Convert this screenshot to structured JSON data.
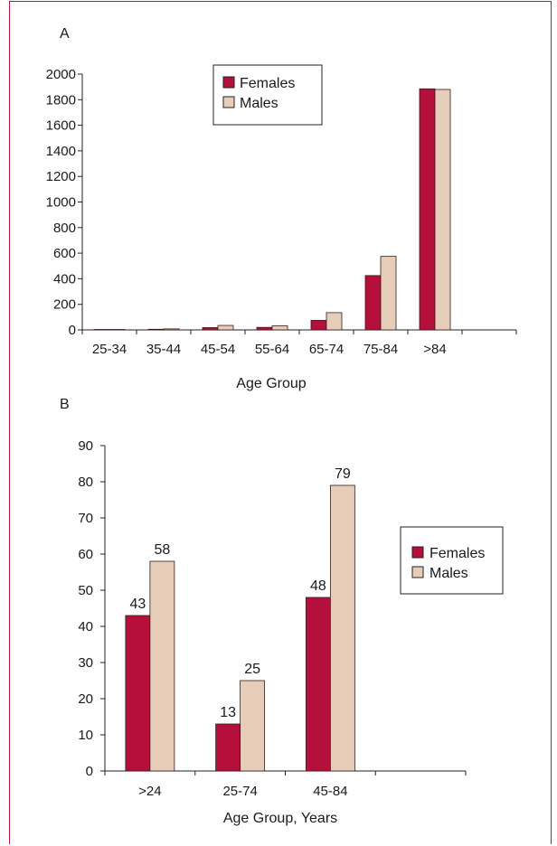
{
  "colors": {
    "females": "#b5103c",
    "males": "#e6cdb9",
    "frame": "#c4143d",
    "axis": "#222222"
  },
  "chart_data": [
    {
      "type": "bar",
      "panel_label": "A",
      "categories": [
        "25-34",
        "35-44",
        "45-54",
        "55-64",
        "65-74",
        "75-84",
        ">84"
      ],
      "series": [
        {
          "name": "Females",
          "values": [
            2,
            5,
            18,
            20,
            75,
            425,
            1885
          ]
        },
        {
          "name": "Males",
          "values": [
            3,
            8,
            35,
            32,
            135,
            575,
            1880
          ]
        }
      ],
      "xlabel": "Age Group",
      "ylabel": "",
      "ylim": [
        0,
        2000
      ],
      "yticks": [
        "0",
        "200",
        "400",
        "600",
        "800",
        "1000",
        "1200",
        "1400",
        "1600",
        "1800",
        "2000"
      ],
      "legend": "top-center",
      "grid": false
    },
    {
      "type": "bar",
      "panel_label": "B",
      "categories": [
        ">24",
        "25-74",
        "45-84"
      ],
      "series": [
        {
          "name": "Females",
          "values": [
            43,
            13,
            48
          ]
        },
        {
          "name": "Males",
          "values": [
            58,
            25,
            79
          ]
        }
      ],
      "data_labels": [
        [
          "43",
          "13",
          "48"
        ],
        [
          "58",
          "25",
          "79"
        ]
      ],
      "xlabel": "Age Group, Years",
      "ylabel": "",
      "ylim": [
        0,
        90
      ],
      "yticks": [
        "0",
        "10",
        "20",
        "30",
        "40",
        "50",
        "60",
        "70",
        "80",
        "90"
      ],
      "legend": "right",
      "grid": false
    }
  ]
}
